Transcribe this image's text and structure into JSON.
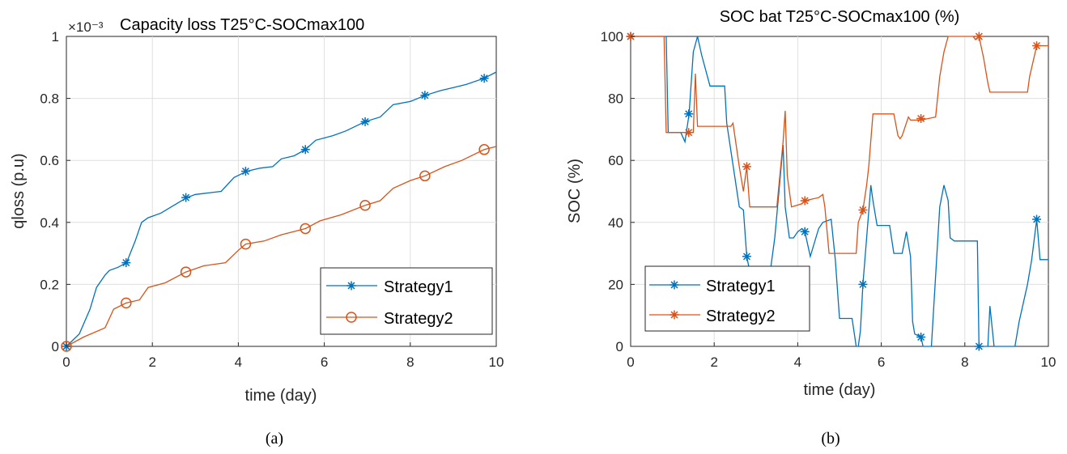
{
  "chart_data": [
    {
      "type": "line",
      "panel_label": "(a)",
      "title": "Capacity loss T25°C-SOCmax100",
      "exponent_label": "×10⁻³",
      "xlabel": "time (day)",
      "ylabel": "qloss (p.u)",
      "xlim": [
        0,
        10
      ],
      "ylim": [
        0,
        1
      ],
      "xticks": [
        "0",
        "2",
        "4",
        "6",
        "8",
        "10"
      ],
      "yticks": [
        "0",
        "0.2",
        "0.4",
        "0.6",
        "0.8",
        "1"
      ],
      "grid": true,
      "legend": "bottom-right",
      "series": [
        {
          "name": "Strategy1",
          "color": "#0072BD",
          "marker": "asterisk",
          "x": [
            0,
            0.3,
            0.55,
            0.7,
            0.9,
            1.0,
            1.2,
            1.4,
            1.6,
            1.75,
            1.9,
            2.2,
            2.5,
            2.8,
            3.0,
            3.3,
            3.6,
            3.9,
            4.2,
            4.5,
            4.8,
            5.0,
            5.3,
            5.56,
            5.8,
            6.2,
            6.5,
            6.95,
            7.3,
            7.6,
            8.0,
            8.35,
            8.7,
            9.0,
            9.3,
            9.72,
            10
          ],
          "y": [
            0,
            0.04,
            0.12,
            0.19,
            0.23,
            0.245,
            0.255,
            0.27,
            0.34,
            0.4,
            0.415,
            0.43,
            0.455,
            0.48,
            0.49,
            0.495,
            0.5,
            0.545,
            0.565,
            0.575,
            0.58,
            0.605,
            0.615,
            0.635,
            0.665,
            0.68,
            0.695,
            0.725,
            0.74,
            0.78,
            0.79,
            0.81,
            0.825,
            0.835,
            0.845,
            0.865,
            0.885
          ],
          "marker_x": [
            0,
            1.39,
            2.78,
            4.17,
            5.56,
            6.95,
            8.34,
            9.72
          ],
          "marker_y": [
            0,
            0.27,
            0.48,
            0.565,
            0.635,
            0.725,
            0.81,
            0.865
          ]
        },
        {
          "name": "Strategy2",
          "color": "#D95319",
          "marker": "circle",
          "x": [
            0,
            0.4,
            0.9,
            1.1,
            1.39,
            1.7,
            1.9,
            2.3,
            2.78,
            3.2,
            3.7,
            4.0,
            4.17,
            4.6,
            5.0,
            5.56,
            5.9,
            6.4,
            6.95,
            7.3,
            7.6,
            8.0,
            8.34,
            8.8,
            9.2,
            9.72,
            10
          ],
          "y": [
            0,
            0.03,
            0.06,
            0.12,
            0.14,
            0.15,
            0.19,
            0.205,
            0.24,
            0.26,
            0.27,
            0.31,
            0.33,
            0.34,
            0.36,
            0.38,
            0.405,
            0.425,
            0.455,
            0.47,
            0.51,
            0.535,
            0.55,
            0.58,
            0.6,
            0.635,
            0.645
          ],
          "marker_x": [
            0,
            1.39,
            2.78,
            4.17,
            5.56,
            6.95,
            8.34,
            9.72
          ],
          "marker_y": [
            0,
            0.14,
            0.24,
            0.33,
            0.38,
            0.455,
            0.55,
            0.635
          ]
        }
      ]
    },
    {
      "type": "line",
      "panel_label": "(b)",
      "title": "SOC bat T25°C-SOCmax100 (%)",
      "xlabel": "time (day)",
      "ylabel": "SOC (%)",
      "xlim": [
        0,
        10
      ],
      "ylim": [
        0,
        100
      ],
      "xticks": [
        "0",
        "2",
        "4",
        "6",
        "8",
        "10"
      ],
      "yticks": [
        "0",
        "20",
        "40",
        "60",
        "80",
        "100"
      ],
      "grid": true,
      "legend": "bottom-left",
      "series": [
        {
          "name": "Strategy1",
          "color": "#0072BD",
          "marker": "asterisk",
          "x": [
            0,
            0.85,
            0.9,
            1.2,
            1.3,
            1.4,
            1.5,
            1.6,
            1.7,
            1.9,
            2.25,
            2.3,
            2.6,
            2.7,
            2.78,
            2.9,
            3.0,
            3.1,
            3.3,
            3.45,
            3.55,
            3.65,
            3.7,
            3.8,
            3.9,
            4.0,
            4.1,
            4.17,
            4.3,
            4.5,
            4.6,
            4.8,
            4.9,
            5.0,
            5.3,
            5.4,
            5.45,
            5.5,
            5.56,
            5.65,
            5.75,
            5.8,
            5.9,
            6.0,
            6.2,
            6.3,
            6.5,
            6.6,
            6.7,
            6.75,
            6.8,
            6.95,
            7.0,
            7.1,
            7.2,
            7.4,
            7.5,
            7.6,
            7.65,
            7.75,
            7.9,
            8.3,
            8.34,
            8.4,
            8.55,
            8.6,
            8.7,
            9.2,
            9.3,
            9.5,
            9.6,
            9.72,
            9.8,
            10
          ],
          "y": [
            100,
            100,
            69,
            69,
            66,
            75,
            95,
            100,
            94,
            84,
            84,
            72,
            45,
            44,
            29,
            21,
            14,
            10,
            20,
            35,
            50,
            65,
            45,
            35,
            35,
            37,
            38,
            37,
            29,
            38,
            40,
            41,
            28,
            9,
            9,
            0,
            0,
            5,
            20,
            35,
            52,
            47,
            39,
            39,
            39,
            30,
            30,
            37,
            29,
            8,
            4,
            3,
            0,
            0,
            0,
            45,
            52,
            47,
            35,
            34,
            34,
            34,
            0,
            0,
            0,
            13,
            0,
            0,
            8,
            20,
            28,
            41,
            28,
            28
          ],
          "marker_x": [
            0,
            1.39,
            2.78,
            4.17,
            5.56,
            6.95,
            8.34,
            9.72
          ],
          "marker_y": [
            100,
            75,
            29,
            37,
            20,
            3,
            0,
            41
          ]
        },
        {
          "name": "Strategy2",
          "color": "#D95319",
          "marker": "asterisk",
          "x": [
            0,
            0.8,
            0.85,
            1.2,
            1.5,
            1.55,
            1.6,
            2.4,
            2.45,
            2.6,
            2.7,
            2.78,
            2.85,
            3.0,
            3.5,
            3.65,
            3.7,
            3.75,
            3.85,
            4.1,
            4.17,
            4.5,
            4.6,
            4.65,
            4.75,
            5.4,
            5.45,
            5.56,
            5.65,
            5.7,
            5.8,
            6.3,
            6.4,
            6.45,
            6.5,
            6.65,
            6.7,
            6.95,
            7.3,
            7.4,
            7.5,
            7.6,
            8.2,
            8.25,
            8.34,
            8.45,
            8.55,
            8.6,
            9.5,
            9.55,
            9.72,
            10
          ],
          "y": [
            100,
            100,
            69,
            69,
            69,
            88,
            71,
            71,
            72,
            58,
            50,
            58,
            45,
            45,
            45,
            66,
            76,
            55,
            45,
            46,
            47,
            48,
            49,
            45,
            30,
            30,
            40,
            44,
            52,
            58,
            75,
            75,
            68,
            67,
            68,
            74,
            73,
            73,
            74,
            87,
            95,
            100,
            100,
            99,
            100,
            93,
            85,
            82,
            82,
            87,
            97,
            97
          ],
          "marker_x": [
            0,
            1.39,
            2.78,
            4.17,
            5.56,
            6.95,
            8.34,
            9.72
          ],
          "marker_y": [
            100,
            69,
            58,
            47,
            44,
            73.5,
            100,
            97
          ]
        }
      ]
    }
  ]
}
